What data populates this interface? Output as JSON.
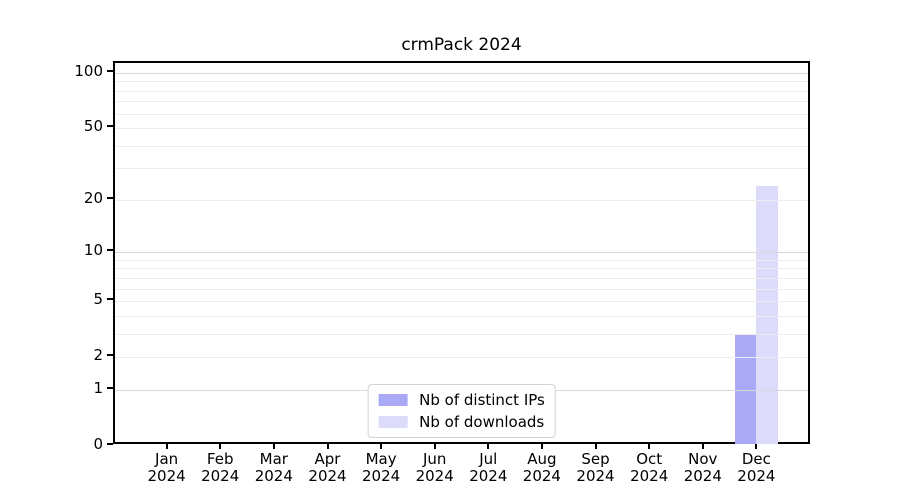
{
  "figure": {
    "background": "#ffffff"
  },
  "chart_data": {
    "type": "bar",
    "title": "crmPack 2024",
    "x": {
      "months": [
        "Jan",
        "Feb",
        "Mar",
        "Apr",
        "May",
        "Jun",
        "Jul",
        "Aug",
        "Sep",
        "Oct",
        "Nov",
        "Dec"
      ],
      "year": "2024"
    },
    "series": [
      {
        "name": "Nb of distinct IPs",
        "color": "#a9a9f5",
        "values": [
          0,
          0,
          0,
          0,
          0,
          0,
          0,
          0,
          0,
          0,
          0,
          3
        ]
      },
      {
        "name": "Nb of downloads",
        "color": "#dcdcfa",
        "values": [
          0,
          0,
          0,
          0,
          0,
          0,
          0,
          0,
          0,
          0,
          0,
          24
        ]
      }
    ],
    "y_axis": {
      "scale": "log1p",
      "tick_values": [
        0,
        1,
        2,
        5,
        10,
        20,
        50,
        100
      ],
      "tick_labels": [
        "0",
        "1",
        "2",
        "5",
        "10",
        "20",
        "50",
        "100"
      ],
      "major_gridlines": [
        1,
        10,
        100
      ],
      "minor_gridlines": [
        2,
        3,
        4,
        5,
        6,
        7,
        8,
        9,
        20,
        30,
        40,
        50,
        60,
        70,
        80,
        90
      ],
      "ylim": [
        0,
        113
      ]
    },
    "legend": {
      "position": "bottom-center"
    },
    "colors": {
      "major_grid": "#d9d9d9",
      "minor_grid": "#ededed",
      "spine": "#000000"
    },
    "grid": true
  }
}
